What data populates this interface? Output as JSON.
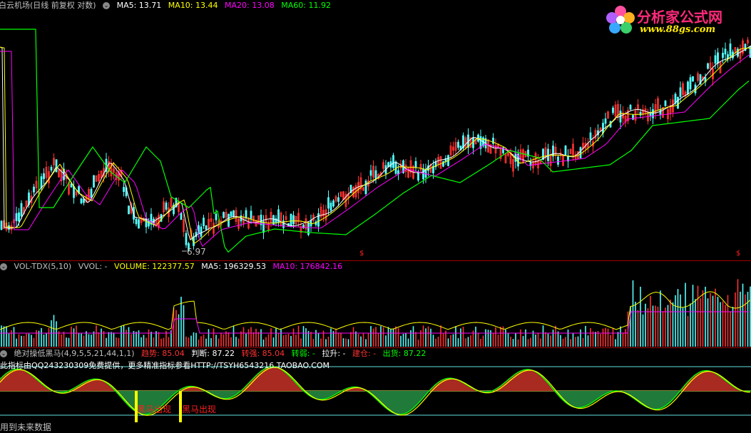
{
  "main_panel": {
    "title": "白云机场(日线 前复权 对数)",
    "ma5_label": "MA5: 13.71",
    "ma10_label": "MA10: 13.44",
    "ma20_label": "MA20: 13.08",
    "ma60_label": "MA60: 11.92",
    "low_marker": "6.97",
    "signal_marker": "$"
  },
  "volume_panel": {
    "indicator": "VOL-TDX(5,10)",
    "vvol": "VVOL: -",
    "volume": "VOLUME: 122377.57",
    "ma5": "MA5: 196329.53",
    "ma10": "MA10: 176842.16"
  },
  "indicator_panel": {
    "name": "绝对操低黑马(4,9,5,5,21,44,1,1)",
    "trend": "趋势: 85.04",
    "judge": "判断: 87.22",
    "strong": "转强: 85.04",
    "weak": "转弱: -",
    "lift": "拉升: -",
    "build": "建仓: -",
    "ship": "出货: 87.22",
    "notice": "此指标由QQ243230309免费提供，更多精准指标参看HTTP://TSYH6543216.TAOBAO.COM",
    "signal1": "黑马出现",
    "signal2": "黑马出现"
  },
  "logo": {
    "title": "分析家公式网",
    "url": "www.88gs.com"
  },
  "footer": {
    "text": "用到未来数据"
  },
  "colors": {
    "ma5": "#ffffff",
    "ma10": "#ffff00",
    "ma20": "#ff00ff",
    "ma60": "#00ff00",
    "up": "#ff3232",
    "down": "#54ffff",
    "fill_up": "#a82a20",
    "fill_down": "#207a3a"
  }
}
